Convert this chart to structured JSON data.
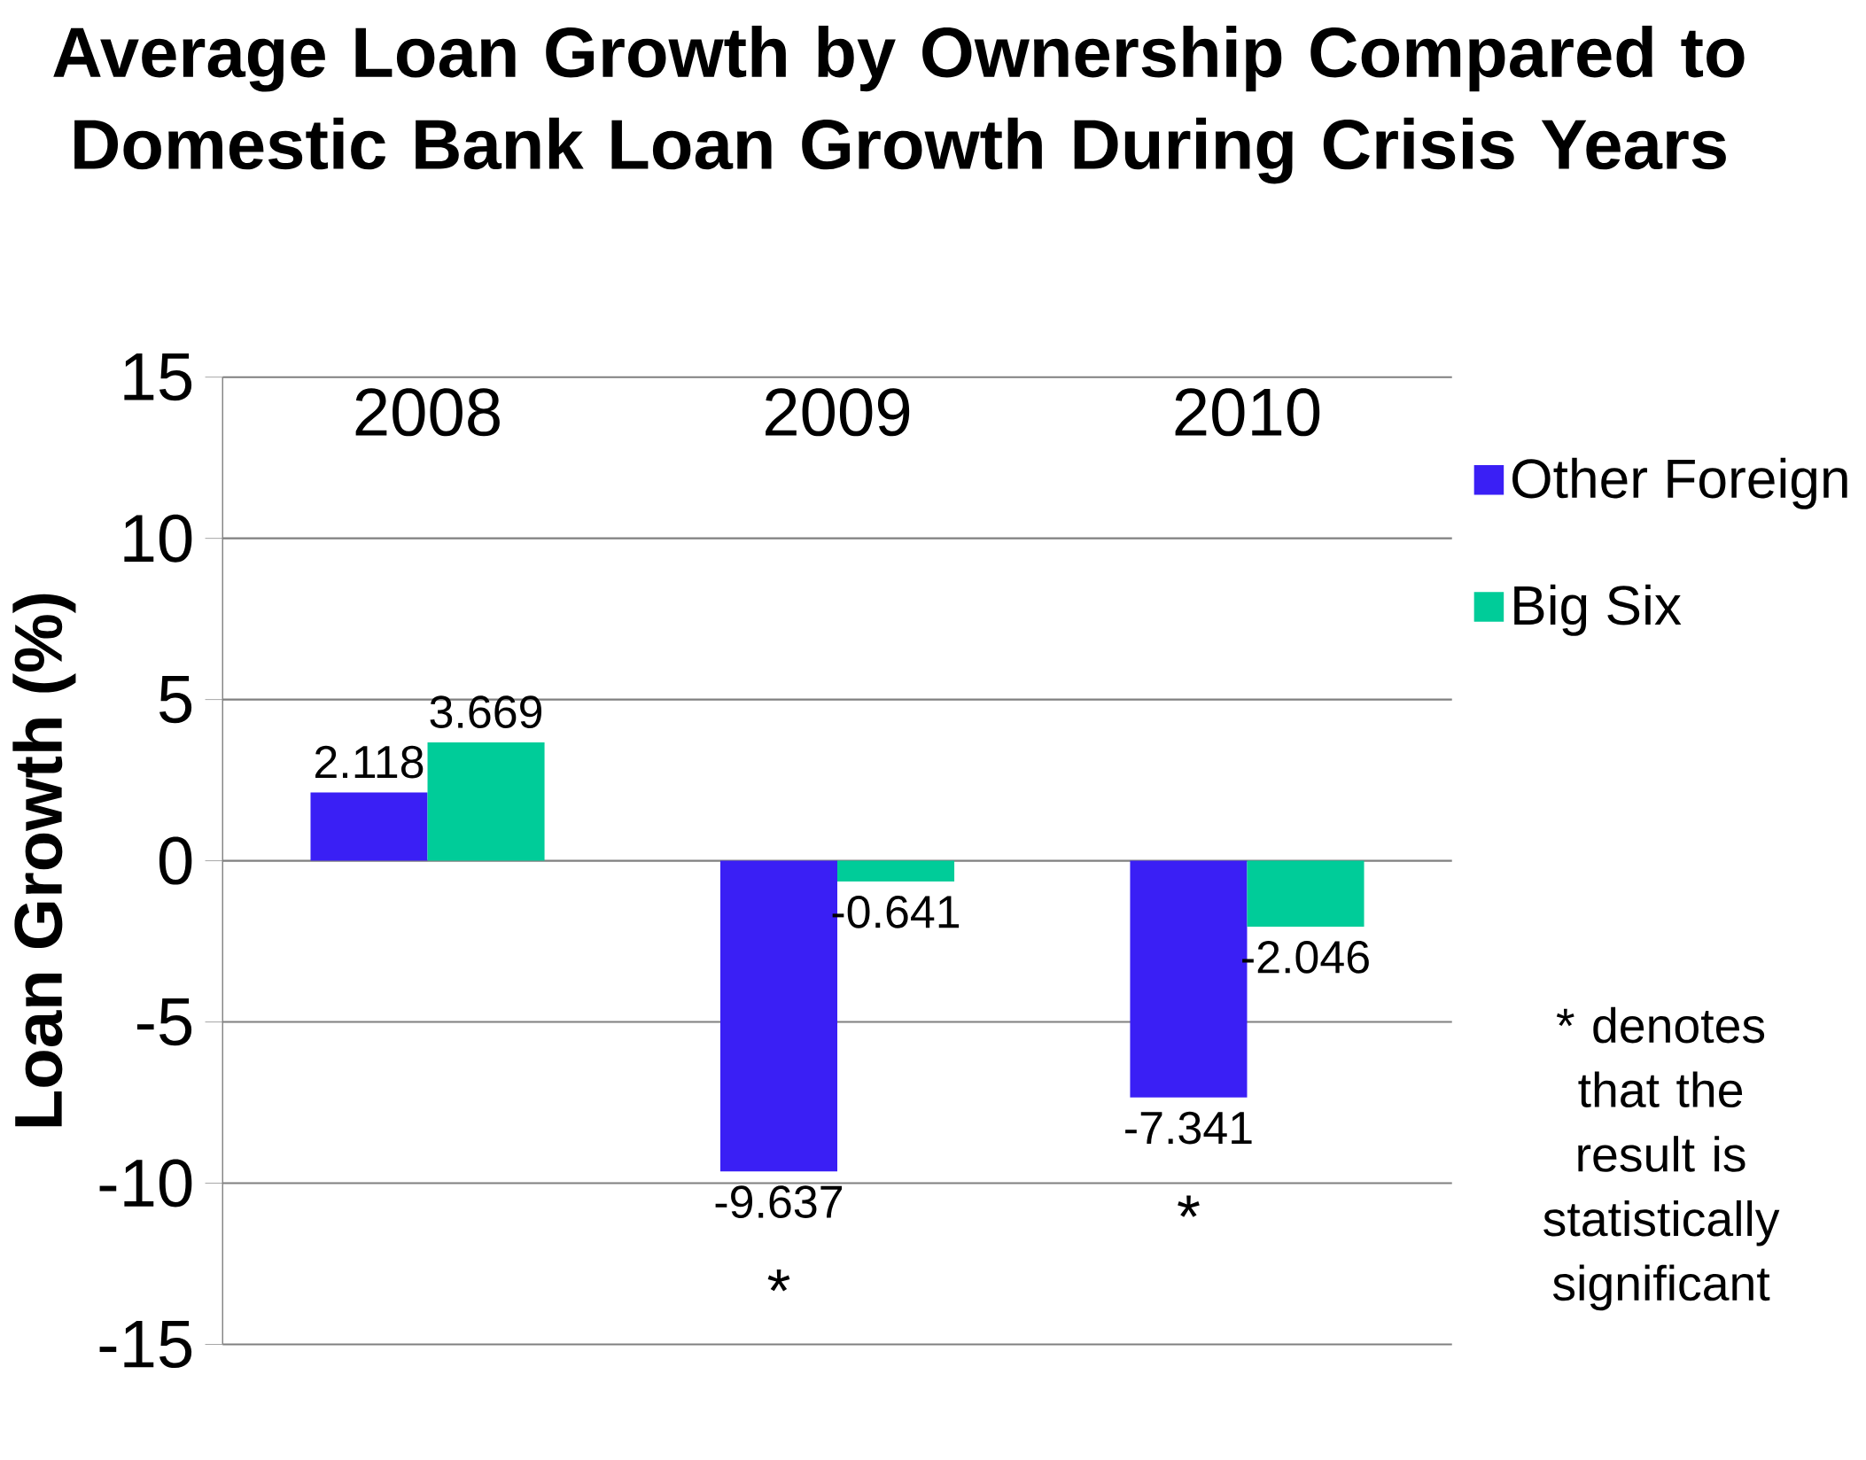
{
  "chart_data": {
    "type": "bar",
    "title": "Average Loan Growth by Ownership Compared to Domestic Bank Loan Growth During Crisis Years",
    "ylabel": "Loan Growth (%)",
    "categories": [
      "2008",
      "2009",
      "2010"
    ],
    "series": [
      {
        "name": "Other Foreign",
        "color": "#3a1ff5",
        "values": [
          2.118,
          -9.637,
          -7.341
        ]
      },
      {
        "name": "Big Six",
        "color": "#00cc99",
        "values": [
          3.669,
          -0.641,
          -2.046
        ]
      }
    ],
    "ylim": [
      -15,
      15
    ],
    "yticks": [
      -15,
      -10,
      -5,
      0,
      5,
      10,
      15
    ],
    "grid": "y",
    "legend": "right",
    "data_labels": true,
    "annotations": [
      {
        "text": "*",
        "x": "2009",
        "y": -9.637
      },
      {
        "text": "*",
        "x": "2010",
        "y": -7.341
      },
      "* denotes that the result is statistically significant"
    ]
  }
}
